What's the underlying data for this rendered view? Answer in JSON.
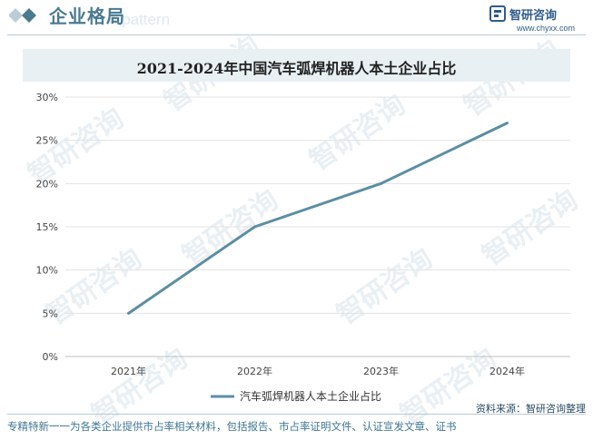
{
  "header": {
    "title": "企业格局",
    "ghost_text": "e pattern",
    "brand_name": "智研咨询",
    "brand_url": "www.chyxx.com"
  },
  "watermark": {
    "text": "智研咨询"
  },
  "chart_data": {
    "type": "line",
    "title": "2021-2024年中国汽车弧焊机器人本土企业占比",
    "x": [
      "2021年",
      "2022年",
      "2023年",
      "2024年"
    ],
    "series": [
      {
        "name": "汽车弧焊机器人本土企业占比",
        "values": [
          5,
          15,
          20,
          27
        ]
      }
    ],
    "y_ticks": [
      "0%",
      "5%",
      "10%",
      "15%",
      "20%",
      "25%",
      "30%"
    ],
    "ylim": [
      0,
      30
    ],
    "ylabel": "",
    "xlabel": "",
    "grid": true,
    "legend_position": "bottom-center",
    "line_color": "#5b8ea3"
  },
  "source_label": "资料来源：智研咨询整理",
  "footer_text": "专精特新一一为各类企业提供市占率相关材料，包括报告、市占率证明文件、认证宣发文章、证书"
}
